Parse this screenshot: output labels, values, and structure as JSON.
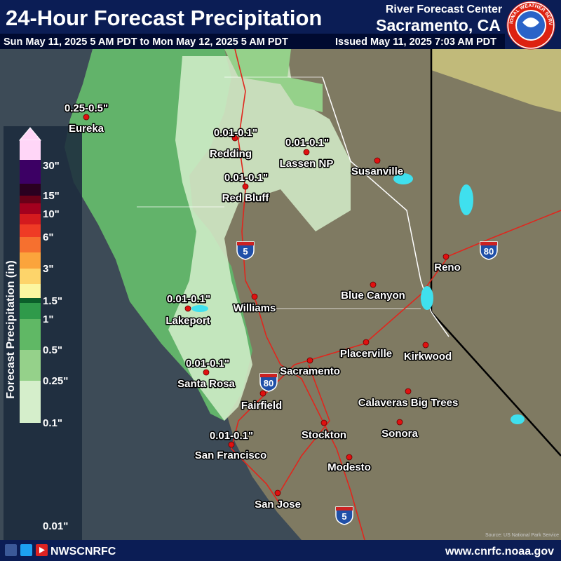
{
  "header": {
    "title": "24-Hour Forecast Precipitation",
    "center": "River Forecast Center",
    "office": "Sacramento, CA",
    "valid_period": "Sun May 11, 2025 5 AM PDT to Mon May 12, 2025 5 AM PDT",
    "issued": "Issued May 11, 2025 7:03 AM PDT"
  },
  "logo": {
    "text": "NATIONAL WEATHER SERVICE"
  },
  "legend": {
    "title": "Forecast Precipitation (in)",
    "labels": [
      "30\"",
      "15\"",
      "10\"",
      "6\"",
      "3\"",
      "1.5\"",
      "1\"",
      "0.5\"",
      "0.25\"",
      "0.1\"",
      "0.01\""
    ],
    "colors": [
      "#ffd6f7",
      "#3c0064",
      "#2a0020",
      "#6a0018",
      "#a3001e",
      "#d41a1e",
      "#ef3b25",
      "#f6702f",
      "#fba43c",
      "#fdd46a",
      "#fbf6a0",
      "#0b5f2a",
      "#2f9a4a",
      "#60b865",
      "#95d18a",
      "#d5eecb"
    ]
  },
  "cities": [
    "Eureka",
    "Redding",
    "Lassen NP",
    "Susanville",
    "Red Bluff",
    "Reno",
    "Blue Canyon",
    "Lakeport",
    "Williams",
    "Placerville",
    "Kirkwood",
    "Santa Rosa",
    "Sacramento",
    "Fairfield",
    "Calaveras Big Trees",
    "Sonora",
    "Stockton",
    "San Francisco",
    "Modesto",
    "San Jose"
  ],
  "amount_labels": [
    "0.25-0.5\"",
    "0.01-0.1\"",
    "0.01-0.1\"",
    "0.01-0.1\"",
    "0.01-0.1\"",
    "0.01-0.1\"",
    "0.01-0.1\""
  ],
  "highways": [
    "5",
    "80",
    "80",
    "5"
  ],
  "source": "Source: US National Park Service",
  "footer": {
    "handle": "NWSCNRFC",
    "url": "www.cnrfc.noaa.gov"
  }
}
